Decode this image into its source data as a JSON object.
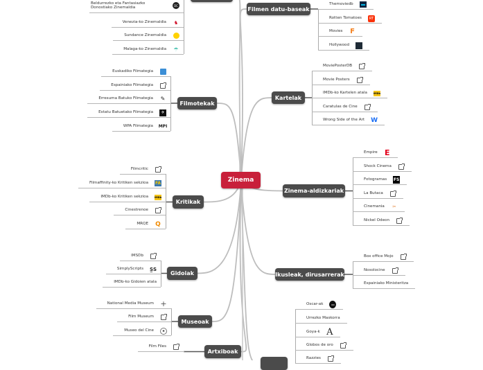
{
  "root": {
    "label": "Zinema",
    "color": "#c8203a"
  },
  "branches": [
    {
      "label": "",
      "leaves": [
        {
          "label": "Beldurrezko eta Fantasiazko Donostiako Zinemaldia",
          "icon": "dc-logo-icon"
        },
        {
          "label": "Venezia-ko Zinemaldia",
          "icon": "lion-icon"
        },
        {
          "label": "Sundance Zinemaldia",
          "icon": "sun-icon"
        },
        {
          "label": "Malaga-ko Zinemaldia",
          "icon": "umbrella-icon"
        }
      ]
    },
    {
      "label": "Filmotekak",
      "leaves": [
        {
          "label": "Euskadiko Filmategia",
          "icon": "filmoteca-logo-icon"
        },
        {
          "label": "Espainiako Filmategia",
          "icon": "external-link-icon"
        },
        {
          "label": "Erresuma Batuko Filmategia",
          "icon": "bfi-logo-icon"
        },
        {
          "label": "Estatu Batuetako Filmategia",
          "icon": "film-archive-logo-icon"
        },
        {
          "label": "WPA Filmategia",
          "icon": "mpi-logo-icon"
        }
      ]
    },
    {
      "label": "Kritikak",
      "leaves": [
        {
          "label": "Filmcritic",
          "icon": "external-link-icon"
        },
        {
          "label": "Filmaffinity-ko Kritiken sekzioa",
          "icon": "filmaffinity-logo-icon"
        },
        {
          "label": "IMDb-ko Kritiken sekzioa",
          "icon": "imdb-logo-icon"
        },
        {
          "label": "Cinestrenoe",
          "icon": "external-link-icon"
        },
        {
          "label": "MRQE",
          "icon": "mrqe-logo-icon"
        }
      ]
    },
    {
      "label": "Gidoiak",
      "leaves": [
        {
          "label": "IMSDb",
          "icon": "external-link-icon"
        },
        {
          "label": "SimplyScripts",
          "icon": "simplyscripts-logo-icon"
        },
        {
          "label": "IMDb-ko Gidoien atala",
          "icon": ""
        }
      ]
    },
    {
      "label": "Museoak",
      "leaves": [
        {
          "label": "National Media Museum",
          "icon": "cross-icon"
        },
        {
          "label": "Film Museum",
          "icon": "external-link-icon"
        },
        {
          "label": "Museo del Cine",
          "icon": "museo-logo-icon"
        }
      ]
    },
    {
      "label": "Artxiboak",
      "leaves": [
        {
          "label": "Film Files",
          "icon": "external-link-icon"
        }
      ]
    },
    {
      "label": "Filmen datu-baseak",
      "leaves": [
        {
          "label": "Themoviedb",
          "icon": "tmdb-logo-icon"
        },
        {
          "label": "Rotten Tomatoes",
          "icon": "rotten-tomatoes-logo-icon"
        },
        {
          "label": "Movies",
          "icon": "fandango-logo-icon"
        },
        {
          "label": "Hollywood",
          "icon": "hollywood-logo-icon"
        }
      ]
    },
    {
      "label": "Kartelak",
      "leaves": [
        {
          "label": "MoviePosterDB",
          "icon": "external-link-icon"
        },
        {
          "label": "Movie Posters",
          "icon": "external-link-icon"
        },
        {
          "label": "IMDb-ko Kartelen atala",
          "icon": "imdb-logo-icon"
        },
        {
          "label": "Caratulas de Cine",
          "icon": "external-link-icon"
        },
        {
          "label": "Wrong Side of the Art",
          "icon": "wrong-side-logo-icon"
        }
      ]
    },
    {
      "label": "Zinema-aldizkariak",
      "leaves": [
        {
          "label": "Empire",
          "icon": "empire-logo-icon"
        },
        {
          "label": "Shock Cinema",
          "icon": "external-link-icon"
        },
        {
          "label": "Fotogramas",
          "icon": "fotogramas-logo-icon"
        },
        {
          "label": "La Butaca",
          "icon": "external-link-icon"
        },
        {
          "label": "Cinemania",
          "icon": "cinemania-logo-icon"
        },
        {
          "label": "Nickel Odeon",
          "icon": "external-link-icon"
        }
      ]
    },
    {
      "label": "Ikusleak, dirusarrerak",
      "leaves": [
        {
          "label": "Box office Mojo",
          "icon": "external-link-icon"
        },
        {
          "label": "Nosolocine",
          "icon": "external-link-icon"
        },
        {
          "label": "Espainiako Ministeritza",
          "icon": ""
        }
      ]
    },
    {
      "label": "",
      "leaves": [
        {
          "label": "Oscar-ak",
          "icon": "oscars-logo-icon"
        },
        {
          "label": "Urrezko Maskorra",
          "icon": ""
        },
        {
          "label": "Goya-k",
          "icon": "goya-logo-icon"
        },
        {
          "label": "Globos de oro",
          "icon": "external-link-icon"
        },
        {
          "label": "Razzies",
          "icon": "external-link-icon"
        }
      ]
    }
  ]
}
